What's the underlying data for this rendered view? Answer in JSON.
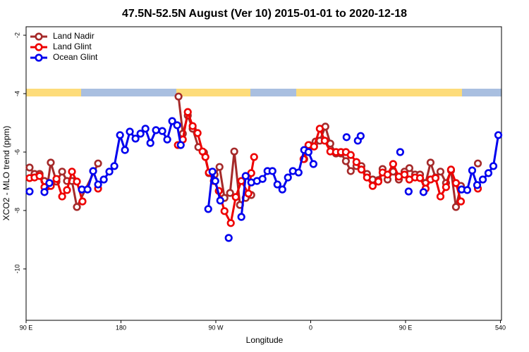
{
  "chart_data": {
    "type": "line",
    "title": "47.5N-52.5N August (Ver 10)   2015-01-01 to 2020-12-18",
    "x_label": "Longitude",
    "y_label": "XCO2 - MLO trend (ppm)",
    "xlim": [
      90,
      541
    ],
    "ylim": [
      -11.76,
      -1.71
    ],
    "xticks": [
      {
        "value": 90,
        "label": "90 E"
      },
      180,
      {
        "value": 270,
        "label": "90 W"
      },
      {
        "value": 360,
        "label": "0"
      },
      {
        "value": 450,
        "label": "90 E"
      },
      540
    ],
    "yticks": [
      -2,
      -4,
      -6,
      -8,
      -10
    ],
    "legend": "top-left",
    "series": [
      {
        "name": "Land Nadir",
        "color": "#a52a2a",
        "x": [
          93.3,
          98.0,
          102.8,
          107.4,
          110.1,
          113.4,
          118.8,
          124.2,
          128.8,
          133.5,
          138.2,
          158.3,
          null,
          234.6,
          238.7,
          243.4,
          248.0,
          253.4,
          258.8,
          263.4,
          268.8,
          273.5,
          278.2,
          283.5,
          287.5,
          292.9,
          298.3,
          303.6,
          null,
          353.8,
          358.5,
          364.6,
          368.6,
          373.9,
          378.6,
          384.0,
          388.7,
          393.4,
          398.0,
          403.4,
          408.1,
          413.4,
          418.8,
          424.2,
          428.2,
          432.9,
          438.2,
          443.6,
          449.0,
          453.6,
          459.0,
          463.7,
          469.0,
          473.7,
          478.4,
          483.1,
          488.4,
          493.1,
          497.8,
          502.5,
          null,
          518.6
        ],
        "values": [
          -6.53,
          -6.75,
          -6.75,
          -6.99,
          -7.18,
          -6.36,
          -7.01,
          -6.67,
          -6.99,
          -6.99,
          -7.88,
          -6.39,
          null,
          -4.1,
          -5.37,
          -4.75,
          -5.2,
          -5.83,
          -6.02,
          -6.72,
          -6.77,
          -6.51,
          -7.57,
          -7.4,
          -5.98,
          -7.81,
          -7.57,
          -7.47,
          null,
          -6.24,
          -5.76,
          -5.64,
          -5.61,
          -5.13,
          -5.71,
          -6.05,
          -6.05,
          -6.31,
          -6.65,
          -6.48,
          -6.48,
          -6.75,
          -6.94,
          -6.96,
          -6.58,
          -6.94,
          -6.67,
          -6.94,
          -6.67,
          -6.55,
          -6.77,
          -6.77,
          -7.06,
          -6.36,
          -6.87,
          -6.67,
          -7.06,
          -6.63,
          -7.88,
          -7.16,
          null,
          -6.39
        ]
      },
      {
        "name": "Land Glint",
        "color": "#ee0000",
        "x": [
          93.3,
          98.0,
          102.8,
          107.4,
          113.4,
          118.8,
          124.2,
          128.8,
          133.5,
          138.2,
          143.5,
          null,
          158.3,
          null,
          234.0,
          238.7,
          243.4,
          248.0,
          252.7,
          257.4,
          260.1,
          263.4,
          268.1,
          272.8,
          278.2,
          284.2,
          288.9,
          294.2,
          300.9,
          303.6,
          306.3,
          null,
          353.2,
          357.9,
          363.2,
          368.6,
          373.3,
          378.6,
          384.0,
          388.7,
          393.4,
          398.0,
          403.4,
          408.1,
          413.4,
          418.8,
          424.2,
          428.2,
          432.9,
          438.2,
          443.6,
          449.0,
          453.6,
          459.0,
          463.7,
          469.0,
          473.7,
          478.4,
          483.1,
          488.4,
          493.1,
          497.8,
          502.5,
          null,
          518.6
        ],
        "values": [
          -6.89,
          -6.87,
          -6.82,
          -7.2,
          -7.16,
          -6.92,
          -7.52,
          -7.3,
          -6.67,
          -7.01,
          -7.69,
          null,
          -7.25,
          null,
          -5.76,
          -5.57,
          -4.63,
          -5.11,
          -5.35,
          -5.98,
          -6.17,
          -6.7,
          -6.99,
          -7.33,
          -8.02,
          -8.43,
          -7.54,
          -6.99,
          -7.42,
          -6.72,
          -6.17,
          null,
          -6.24,
          -5.76,
          -5.81,
          -5.2,
          -5.61,
          -5.98,
          -6.0,
          -6.0,
          -6.0,
          -6.1,
          -6.34,
          -6.6,
          -6.87,
          -7.16,
          -7.01,
          -6.7,
          -6.77,
          -6.41,
          -6.84,
          -6.77,
          -6.94,
          -6.87,
          -6.89,
          -7.25,
          -6.94,
          -6.89,
          -7.52,
          -7.2,
          -6.6,
          -7.06,
          -7.69,
          null,
          -7.25
        ]
      },
      {
        "name": "Ocean Glint",
        "color": "#0000ee",
        "x": [
          93.3,
          null,
          107.4,
          112.1,
          null,
          142.9,
          148.3,
          153.6,
          158.3,
          163.7,
          169.0,
          173.7,
          179.1,
          183.8,
          188.4,
          193.8,
          198.5,
          203.2,
          207.9,
          213.2,
          219.2,
          223.9,
          228.6,
          233.3,
          236.7,
          null,
          262.8,
          266.8,
          269.5,
          274.2,
          null,
          282.2,
          null,
          294.2,
          298.3,
          303.6,
          309.0,
          314.3,
          319.0,
          323.7,
          328.4,
          333.1,
          338.4,
          343.1,
          348.5,
          353.8,
          357.9,
          362.6,
          null,
          394.0,
          null,
          404.7,
          407.4,
          null,
          444.9,
          null,
          452.9,
          null,
          467.0,
          null,
          503.2,
          508.5,
          513.2,
          517.9,
          523.3,
          528.6,
          533.3,
          538.0
        ],
        "values": [
          -7.35,
          null,
          -7.37,
          -7.06,
          null,
          -7.28,
          -7.28,
          -6.65,
          -7.11,
          -6.94,
          -6.67,
          -6.48,
          -5.42,
          -5.93,
          -5.3,
          -5.54,
          -5.37,
          -5.2,
          -5.69,
          -5.25,
          -5.28,
          -5.57,
          -4.94,
          -5.08,
          -5.76,
          null,
          -7.95,
          -6.67,
          -6.99,
          -7.66,
          null,
          -8.94,
          null,
          -8.22,
          -6.82,
          -7.04,
          -6.99,
          -6.92,
          -6.65,
          -6.65,
          -7.11,
          -7.28,
          -6.87,
          -6.65,
          -6.7,
          -5.93,
          -6.0,
          -6.41,
          null,
          -5.49,
          null,
          -5.61,
          -5.45,
          null,
          -6.0,
          null,
          -7.35,
          null,
          -7.37,
          null,
          -7.28,
          -7.3,
          -6.63,
          -7.13,
          -6.94,
          -6.72,
          -6.48,
          -5.42
        ]
      }
    ]
  }
}
